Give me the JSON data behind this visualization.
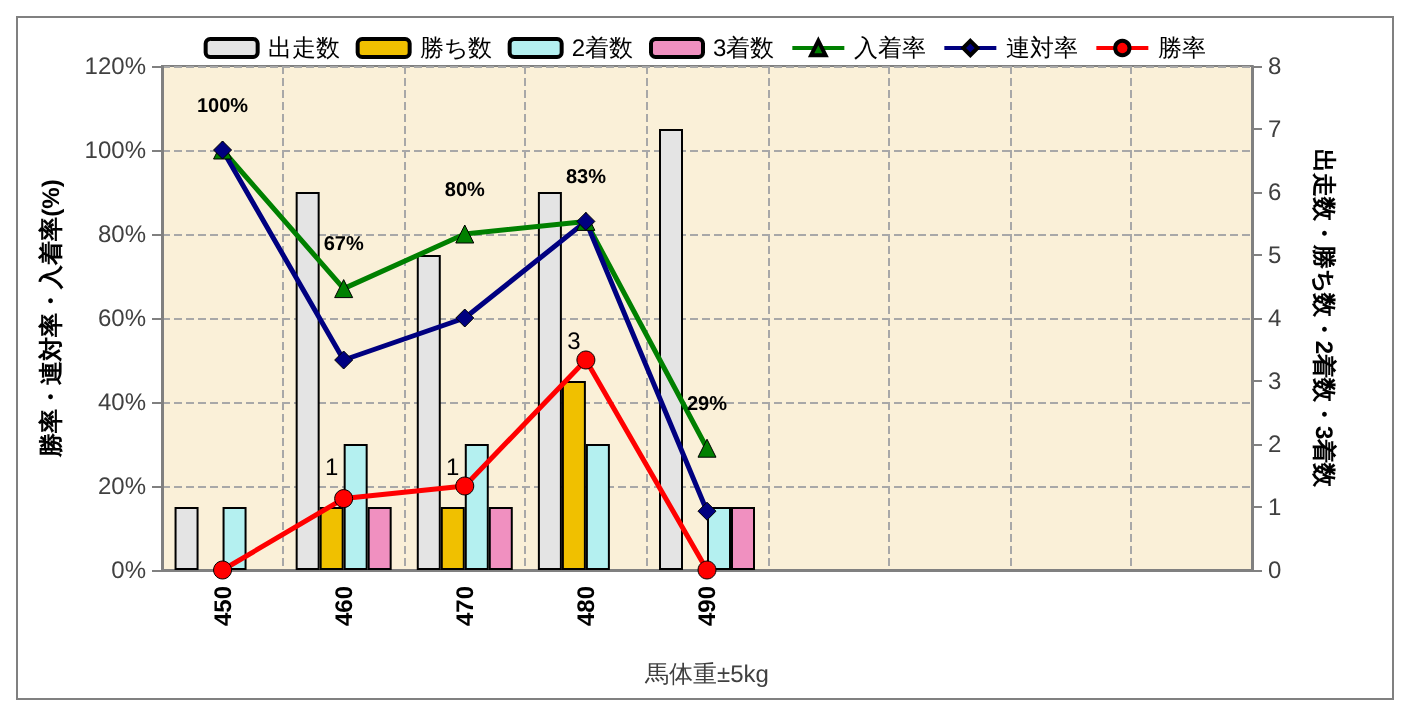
{
  "chart_data": {
    "type": "bar",
    "xlabel": "馬体重±5kg",
    "ylabel": "勝率・連対率・入着率(%)",
    "y2label": "出走数・勝ち数・2着数・3着数",
    "categories": [
      "450",
      "460",
      "470",
      "480",
      "490",
      null,
      null,
      null,
      null
    ],
    "series": [
      {
        "name": "出走数",
        "axis": "y2",
        "color": "#e4e4e4",
        "values": [
          1,
          6,
          5,
          6,
          7,
          null,
          null,
          null,
          null
        ]
      },
      {
        "name": "勝ち数",
        "axis": "y2",
        "color": "#f0c000",
        "values": [
          0,
          1,
          1,
          3,
          0,
          null,
          null,
          null,
          null
        ],
        "value_labels": [
          null,
          "1",
          "1",
          "3",
          null,
          null,
          null,
          null,
          null
        ]
      },
      {
        "name": "2着数",
        "axis": "y2",
        "color": "#b4f0f0",
        "values": [
          1,
          2,
          2,
          2,
          1,
          null,
          null,
          null,
          null
        ]
      },
      {
        "name": "3着数",
        "axis": "y2",
        "color": "#f090c0",
        "values": [
          0,
          1,
          1,
          0,
          1,
          null,
          null,
          null,
          null
        ]
      },
      {
        "name": "入着率",
        "type": "line",
        "color": "#008000",
        "marker": "triangle",
        "values": [
          100,
          67,
          80,
          83,
          29,
          null,
          null,
          null,
          null
        ],
        "value_labels": [
          "100%",
          "67%",
          "80%",
          "83%",
          "29%",
          null,
          null,
          null,
          null
        ]
      },
      {
        "name": "連対率",
        "type": "line",
        "color": "#000080",
        "marker": "diamond",
        "values": [
          100,
          50,
          60,
          83,
          14,
          null,
          null,
          null,
          null
        ]
      },
      {
        "name": "勝率",
        "type": "line",
        "color": "#ff0000",
        "marker": "circle",
        "values": [
          0,
          17,
          20,
          50,
          0,
          null,
          null,
          null,
          null
        ]
      }
    ],
    "ylim": [
      0,
      120
    ],
    "yticks": [
      {
        "value": 0,
        "label": "0%"
      },
      {
        "value": 20,
        "label": "20%"
      },
      {
        "value": 40,
        "label": "40%"
      },
      {
        "value": 60,
        "label": "60%"
      },
      {
        "value": 80,
        "label": "80%"
      },
      {
        "value": 100,
        "label": "100%"
      },
      {
        "value": 120,
        "label": "120%"
      }
    ],
    "y2lim": [
      0,
      8
    ],
    "y2ticks": [
      0,
      1,
      2,
      3,
      4,
      5,
      6,
      7,
      8
    ],
    "grid": true,
    "legend": "top"
  }
}
